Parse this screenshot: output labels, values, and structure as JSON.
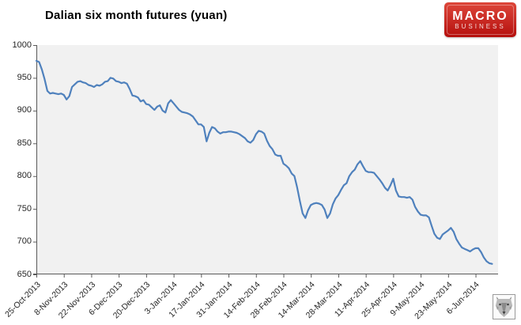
{
  "header": {
    "title": "Dalian six month futures (yuan)"
  },
  "logo": {
    "line1": "MACRO",
    "line2": "BUSINESS",
    "bg_top_color": "#dd4639",
    "bg_bottom_color": "#b5100e",
    "text_color": "#ffffff"
  },
  "icons": {
    "corner_mark": "wolf-icon"
  },
  "chart_data": {
    "type": "line",
    "title": "Dalian six month futures (yuan)",
    "xlabel": "",
    "ylabel": "",
    "ylim": [
      650,
      1000
    ],
    "yticks": [
      1000,
      950,
      900,
      850,
      800,
      750,
      700,
      650
    ],
    "grid": "off",
    "legend_position": "none",
    "plot_bg": "#f1f1f1",
    "axis_color": "#595959",
    "line_color": "#4F81BD",
    "line_width": 2.2,
    "categories": [
      "25-Oct-2013",
      "8-Nov-2013",
      "22-Nov-2013",
      "6-Dec-2013",
      "20-Dec-2013",
      "3-Jan-2014",
      "17-Jan-2014",
      "31-Jan-2014",
      "14-Feb-2014",
      "28-Feb-2014",
      "14-Mar-2014",
      "28-Mar-2014",
      "11-Apr-2014",
      "25-Apr-2014",
      "9-May-2014",
      "23-May-2014",
      "6-Jun-2014"
    ],
    "points_per_category": 10,
    "values": [
      976,
      974,
      963,
      948,
      930,
      926,
      927,
      926,
      925,
      926,
      924,
      917,
      922,
      936,
      940,
      944,
      945,
      943,
      942,
      939,
      938,
      936,
      939,
      938,
      940,
      944,
      945,
      950,
      949,
      945,
      944,
      942,
      943,
      941,
      933,
      923,
      922,
      920,
      914,
      916,
      910,
      909,
      905,
      901,
      906,
      908,
      900,
      897,
      911,
      916,
      911,
      906,
      901,
      898,
      897,
      896,
      894,
      891,
      885,
      879,
      879,
      875,
      853,
      866,
      875,
      873,
      868,
      865,
      867,
      867,
      868,
      868,
      867,
      866,
      864,
      861,
      858,
      853,
      851,
      855,
      864,
      869,
      868,
      865,
      854,
      846,
      841,
      833,
      831,
      831,
      819,
      816,
      812,
      804,
      800,
      783,
      762,
      743,
      736,
      748,
      756,
      758,
      759,
      758,
      756,
      749,
      736,
      743,
      757,
      766,
      771,
      779,
      786,
      789,
      800,
      806,
      810,
      818,
      823,
      815,
      808,
      806,
      806,
      805,
      800,
      795,
      789,
      782,
      778,
      786,
      796,
      778,
      769,
      768,
      768,
      767,
      768,
      764,
      753,
      746,
      741,
      740,
      740,
      737,
      724,
      712,
      706,
      704,
      711,
      714,
      717,
      721,
      715,
      704,
      697,
      691,
      689,
      687,
      685,
      688,
      690,
      690,
      684,
      676,
      670,
      667,
      666
    ]
  }
}
